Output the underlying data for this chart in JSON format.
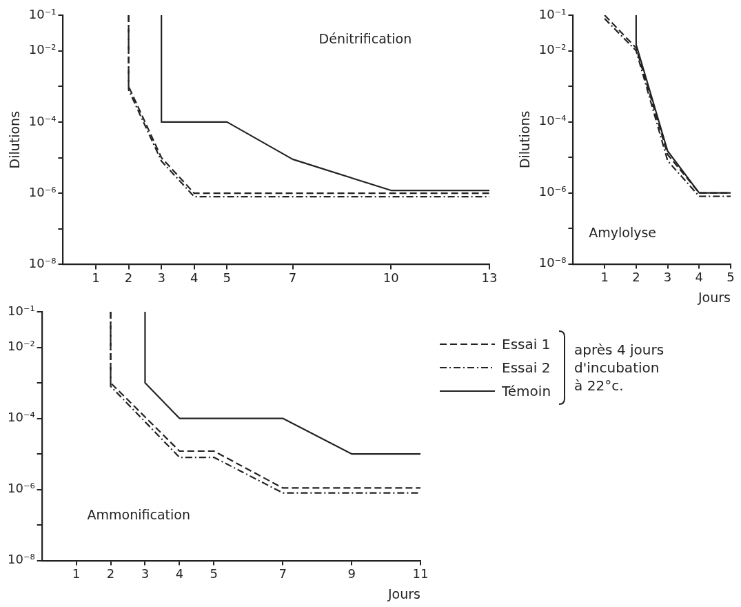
{
  "chart_data": [
    {
      "type": "line",
      "title": "Dénitrification",
      "ylabel": "Dilutions",
      "log": "y",
      "grid": false,
      "marker": "none",
      "legend": false,
      "xlim": [
        0,
        13
      ],
      "xticks": [
        1,
        2,
        3,
        4,
        5,
        7,
        10,
        13
      ],
      "ylim": [
        1e-08,
        0.1
      ],
      "yticks": [
        {
          "value": 1e-08,
          "label": "10⁻⁸"
        },
        {
          "value": 1e-07,
          "label": null
        },
        {
          "value": 1e-06,
          "label": "10⁻⁶"
        },
        {
          "value": 1e-05,
          "label": null
        },
        {
          "value": 0.0001,
          "label": "10⁻⁴"
        },
        {
          "value": 0.001,
          "label": null
        },
        {
          "value": 0.01,
          "label": "10⁻²"
        },
        {
          "value": 0.1,
          "label": "10⁻¹"
        }
      ],
      "series": [
        {
          "color": "#222222",
          "line_style": "dashed",
          "x": [
            2,
            2,
            3,
            4,
            13
          ],
          "values": [
            0.1,
            0.001,
            1e-05,
            1e-06,
            1e-06
          ]
        },
        {
          "color": "#222222",
          "line_style": "dashdot",
          "x": [
            2,
            2,
            3,
            4,
            13
          ],
          "values": [
            0.1,
            0.0008,
            8e-06,
            8e-07,
            8e-07
          ]
        },
        {
          "color": "#222222",
          "line_style": "solid",
          "x": [
            3,
            3,
            5,
            7,
            10,
            13
          ],
          "values": [
            0.1,
            0.0001,
            0.0001,
            9e-06,
            1.2e-06,
            1.2e-06
          ]
        }
      ]
    },
    {
      "type": "line",
      "title": "Amylolyse",
      "ylabel": "Dilutions",
      "xlabel": "Jours",
      "log": "y",
      "grid": false,
      "marker": "none",
      "legend": false,
      "xlim": [
        0,
        5
      ],
      "xticks": [
        1,
        2,
        3,
        4,
        5
      ],
      "ylim": [
        1e-08,
        0.1
      ],
      "yticks": [
        {
          "value": 1e-08,
          "label": "10⁻⁸"
        },
        {
          "value": 1e-07,
          "label": null
        },
        {
          "value": 1e-06,
          "label": "10⁻⁶"
        },
        {
          "value": 1e-05,
          "label": null
        },
        {
          "value": 0.0001,
          "label": "10⁻⁴"
        },
        {
          "value": 0.001,
          "label": null
        },
        {
          "value": 0.01,
          "label": "10⁻²"
        },
        {
          "value": 0.1,
          "label": "10⁻¹"
        }
      ],
      "series": [
        {
          "color": "#222222",
          "line_style": "dashed",
          "x": [
            1,
            2,
            3,
            4,
            5
          ],
          "values": [
            0.1,
            0.012,
            1.2e-05,
            1e-06,
            1e-06
          ]
        },
        {
          "color": "#222222",
          "line_style": "dashdot",
          "x": [
            1,
            2,
            3,
            4,
            5
          ],
          "values": [
            0.08,
            0.01,
            8e-06,
            8e-07,
            8e-07
          ]
        },
        {
          "color": "#222222",
          "line_style": "solid",
          "x": [
            2,
            2,
            3,
            4,
            5
          ],
          "values": [
            0.1,
            0.015,
            1.5e-05,
            1e-06,
            1e-06
          ]
        }
      ]
    },
    {
      "type": "line",
      "title": "Ammonification",
      "xlabel": "Jours",
      "log": "y",
      "grid": false,
      "marker": "none",
      "legend": "right",
      "xlim": [
        0,
        11
      ],
      "xticks": [
        1,
        2,
        3,
        4,
        5,
        7,
        9,
        11
      ],
      "ylim": [
        1e-08,
        0.1
      ],
      "yticks": [
        {
          "value": 1e-08,
          "label": "10⁻⁸"
        },
        {
          "value": 1e-07,
          "label": null
        },
        {
          "value": 1e-06,
          "label": "10⁻⁶"
        },
        {
          "value": 1e-05,
          "label": null
        },
        {
          "value": 0.0001,
          "label": "10⁻⁴"
        },
        {
          "value": 0.001,
          "label": null
        },
        {
          "value": 0.01,
          "label": "10⁻²"
        },
        {
          "value": 0.1,
          "label": "10⁻¹"
        }
      ],
      "annotations": [
        "après 4 jours\nd'incubation\nà 22°c."
      ],
      "series": [
        {
          "name": "Essai 1",
          "color": "#222222",
          "line_style": "dashed",
          "x": [
            2,
            2,
            4,
            5,
            7,
            11
          ],
          "values": [
            0.1,
            0.001,
            1.2e-05,
            1.2e-05,
            1.1e-06,
            1.1e-06
          ]
        },
        {
          "name": "Essai 2",
          "color": "#222222",
          "line_style": "dashdot",
          "x": [
            2,
            2,
            4,
            5,
            7,
            11
          ],
          "values": [
            0.1,
            0.0008,
            8e-06,
            8e-06,
            8e-07,
            8e-07
          ]
        },
        {
          "name": "Témoin",
          "color": "#222222",
          "line_style": "solid",
          "x": [
            3,
            3,
            4,
            7,
            9,
            11
          ],
          "values": [
            0.1,
            0.001,
            0.0001,
            0.0001,
            1e-05,
            1e-05
          ]
        }
      ]
    }
  ]
}
